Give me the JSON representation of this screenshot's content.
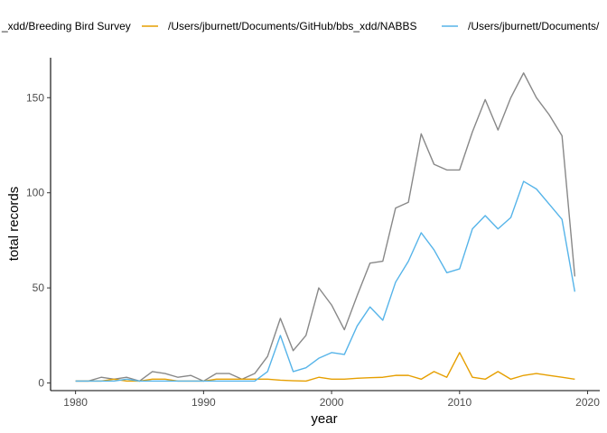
{
  "chart_data": {
    "type": "line",
    "title": "",
    "xlabel": "year",
    "ylabel": "total records",
    "xlim": [
      1980,
      2019
    ],
    "ylim": [
      -4,
      171
    ],
    "xticks": [
      1980,
      1990,
      2000,
      2010,
      2020
    ],
    "yticks": [
      0,
      50,
      100,
      150
    ],
    "grid": false,
    "legend_position": "top",
    "x": [
      1980,
      1981,
      1982,
      1983,
      1984,
      1985,
      1986,
      1987,
      1988,
      1989,
      1990,
      1991,
      1992,
      1993,
      1994,
      1995,
      1996,
      1997,
      1998,
      1999,
      2000,
      2001,
      2002,
      2003,
      2004,
      2005,
      2006,
      2007,
      2008,
      2009,
      2010,
      2011,
      2012,
      2013,
      2014,
      2015,
      2016,
      2017,
      2018,
      2019
    ],
    "series": [
      {
        "name": "_xdd/Breeding Bird Survey",
        "color": "#888888",
        "values": [
          1,
          1,
          3,
          2,
          3,
          1,
          6,
          5,
          3,
          4,
          1,
          5,
          5,
          2,
          5,
          14,
          34,
          17,
          25,
          50,
          41,
          28,
          46,
          63,
          64,
          92,
          95,
          131,
          115,
          112,
          112,
          132,
          149,
          133,
          150,
          163,
          150,
          141,
          130,
          56
        ]
      },
      {
        "name": "/Users/jburnett/Documents/GitHub/bbs_xdd/NABBS",
        "color": "#E69F00",
        "values": [
          1,
          1,
          1,
          2,
          1,
          1,
          2,
          2,
          1,
          1,
          1,
          2,
          2,
          2,
          2,
          2,
          1.5,
          1.2,
          1,
          3,
          2,
          2,
          2.5,
          2.8,
          3,
          4,
          4,
          2,
          6,
          3,
          16,
          3,
          2,
          6,
          2,
          4,
          5,
          4,
          3,
          2
        ]
      },
      {
        "name": "/Users/jburnett/Documents/",
        "color": "#56B4E9",
        "values": [
          1,
          1,
          1,
          1,
          2,
          1,
          1,
          1,
          1,
          1,
          1,
          1,
          1,
          1,
          1,
          6,
          25,
          6,
          8,
          13,
          16,
          15,
          30,
          40,
          33,
          53,
          64,
          79,
          70,
          58,
          60,
          81,
          88,
          81,
          87,
          106,
          102,
          94,
          86,
          48
        ]
      }
    ]
  }
}
